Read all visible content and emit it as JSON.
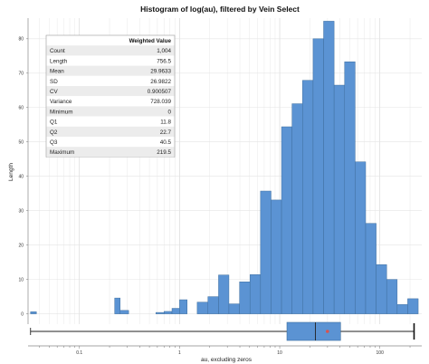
{
  "chart_data": {
    "type": "bar",
    "title": "Histogram of log(au), filtered by Vein Select",
    "xlabel": "au, excluding zeros",
    "ylabel": "Length",
    "x_scale": "log",
    "x_ticks": [
      {
        "value": 0.1,
        "label": "0.1"
      },
      {
        "value": 1,
        "label": "1"
      },
      {
        "value": 10,
        "label": "10"
      },
      {
        "value": 100,
        "label": "100"
      }
    ],
    "y_ticks": [
      0,
      10,
      20,
      30,
      40,
      50,
      60,
      70,
      80
    ],
    "ylim": [
      -3,
      86
    ],
    "grid": true,
    "bar_color": "#5b93d3",
    "bins": [
      {
        "lo": 0.0325,
        "hi": 0.0372,
        "value": 0.6
      },
      {
        "lo": 0.225,
        "hi": 0.255,
        "value": 4.6
      },
      {
        "lo": 0.255,
        "hi": 0.31,
        "value": 1.0
      },
      {
        "lo": 0.58,
        "hi": 0.7,
        "value": 0.4
      },
      {
        "lo": 0.7,
        "hi": 0.84,
        "value": 0.7
      },
      {
        "lo": 0.84,
        "hi": 1.0,
        "value": 1.6
      },
      {
        "lo": 1.0,
        "hi": 1.19,
        "value": 4.1
      },
      {
        "lo": 1.5,
        "hi": 1.92,
        "value": 3.4
      },
      {
        "lo": 1.92,
        "hi": 2.45,
        "value": 5.0
      },
      {
        "lo": 2.45,
        "hi": 3.11,
        "value": 11.3
      },
      {
        "lo": 3.11,
        "hi": 3.97,
        "value": 2.9
      },
      {
        "lo": 3.97,
        "hi": 5.05,
        "value": 9.3
      },
      {
        "lo": 5.05,
        "hi": 6.43,
        "value": 11.4
      },
      {
        "lo": 6.43,
        "hi": 8.19,
        "value": 35.7
      },
      {
        "lo": 8.19,
        "hi": 10.43,
        "value": 33.1
      },
      {
        "lo": 10.43,
        "hi": 13.28,
        "value": 54.4
      },
      {
        "lo": 13.28,
        "hi": 16.91,
        "value": 61.1
      },
      {
        "lo": 16.91,
        "hi": 21.53,
        "value": 67.9
      },
      {
        "lo": 21.53,
        "hi": 27.42,
        "value": 80.0
      },
      {
        "lo": 27.42,
        "hi": 34.91,
        "value": 85.1
      },
      {
        "lo": 34.91,
        "hi": 44.46,
        "value": 66.5
      },
      {
        "lo": 44.46,
        "hi": 56.61,
        "value": 73.3
      },
      {
        "lo": 56.61,
        "hi": 72.09,
        "value": 44.2
      },
      {
        "lo": 72.09,
        "hi": 91.8,
        "value": 26.3
      },
      {
        "lo": 91.8,
        "hi": 116.89,
        "value": 14.3
      },
      {
        "lo": 116.89,
        "hi": 148.85,
        "value": 10.0
      },
      {
        "lo": 148.85,
        "hi": 189.54,
        "value": 2.7
      },
      {
        "lo": 189.54,
        "hi": 241.35,
        "value": 4.4
      }
    ],
    "boxplot": {
      "min": 0.0325,
      "q1": 11.8,
      "median": 22.7,
      "q3": 40.5,
      "max": 219.5,
      "mean": 29.9633,
      "box_color": "#5b93d3",
      "mean_marker_color": "#d9534f"
    },
    "stats_table": {
      "header": "Weighted Value",
      "rows": [
        {
          "label": "Count",
          "value": "1,004"
        },
        {
          "label": "Length",
          "value": "756.5"
        },
        {
          "label": "Mean",
          "value": "29.9633"
        },
        {
          "label": "SD",
          "value": "26.9822"
        },
        {
          "label": "CV",
          "value": "0.900507"
        },
        {
          "label": "Variance",
          "value": "728.039"
        },
        {
          "label": "Minimum",
          "value": "0"
        },
        {
          "label": "Q1",
          "value": "11.8"
        },
        {
          "label": "Q2",
          "value": "22.7"
        },
        {
          "label": "Q3",
          "value": "40.5"
        },
        {
          "label": "Maximum",
          "value": "219.5"
        }
      ]
    }
  }
}
